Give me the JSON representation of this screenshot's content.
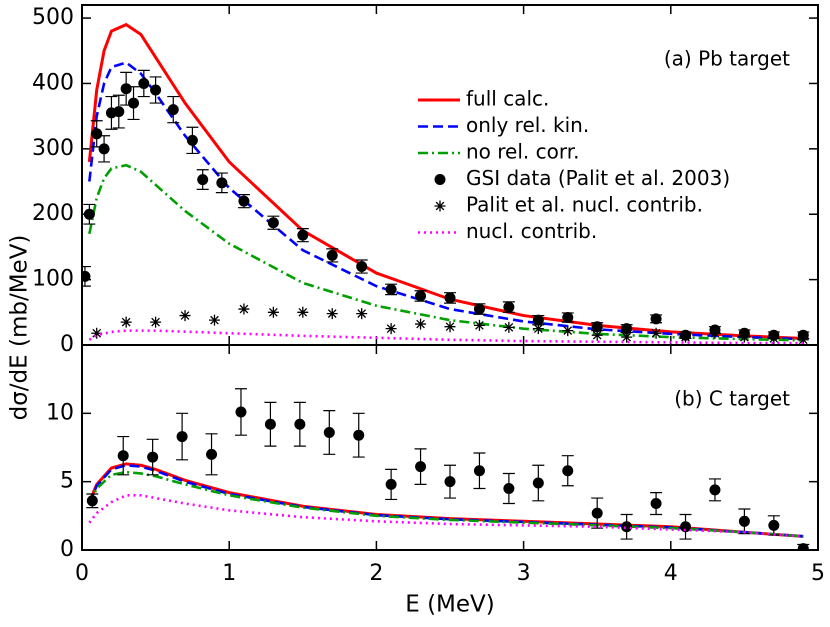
{
  "chart_data": [
    {
      "type": "line",
      "annotation": "(a) Pb target",
      "xlim": [
        0,
        5
      ],
      "xticks": [
        0,
        1,
        2,
        3,
        4,
        5
      ],
      "ylim": [
        0,
        520
      ],
      "yticks": [
        0,
        100,
        200,
        300,
        400,
        500
      ],
      "legend": "right",
      "series": [
        {
          "name": "full calc.",
          "color": "#ff0000",
          "style": "solid",
          "x": [
            0.05,
            0.1,
            0.15,
            0.2,
            0.3,
            0.4,
            0.5,
            0.7,
            1,
            1.5,
            2,
            2.5,
            3,
            3.5,
            4,
            4.5,
            4.9
          ],
          "values": [
            280,
            390,
            450,
            480,
            490,
            475,
            440,
            370,
            280,
            175,
            110,
            70,
            45,
            30,
            20,
            14,
            10
          ]
        },
        {
          "name": "only rel. kin.",
          "color": "#0000ff",
          "style": "dashed",
          "x": [
            0.05,
            0.1,
            0.15,
            0.2,
            0.3,
            0.4,
            0.5,
            0.7,
            1,
            1.5,
            2,
            2.5,
            3,
            3.5,
            4,
            4.5,
            4.9
          ],
          "values": [
            250,
            350,
            400,
            425,
            432,
            415,
            385,
            320,
            240,
            145,
            90,
            55,
            36,
            24,
            17,
            12,
            9
          ]
        },
        {
          "name": "no rel. corr.",
          "color": "#00a000",
          "style": "dashdot",
          "x": [
            0.05,
            0.1,
            0.15,
            0.2,
            0.3,
            0.4,
            0.5,
            0.7,
            1,
            1.5,
            2,
            2.5,
            3,
            3.5,
            4,
            4.5,
            4.9
          ],
          "values": [
            170,
            225,
            255,
            270,
            275,
            265,
            245,
            205,
            155,
            95,
            60,
            38,
            25,
            17,
            12,
            9,
            7
          ]
        },
        {
          "name": "GSI data (Palit et al. 2003)",
          "color": "#000000",
          "style": "markers",
          "marker": "circle",
          "x": [
            0.02,
            0.05,
            0.1,
            0.15,
            0.2,
            0.25,
            0.3,
            0.35,
            0.42,
            0.5,
            0.62,
            0.75,
            0.82,
            0.95,
            1.1,
            1.3,
            1.5,
            1.7,
            1.9,
            2.1,
            2.3,
            2.5,
            2.7,
            2.9,
            3.1,
            3.3,
            3.5,
            3.7,
            3.9,
            4.1,
            4.3,
            4.5,
            4.7,
            4.9
          ],
          "values": [
            105,
            200,
            323,
            300,
            355,
            357,
            392,
            370,
            400,
            390,
            360,
            313,
            253,
            248,
            220,
            187,
            168,
            137,
            120,
            85,
            75,
            72,
            55,
            58,
            38,
            42,
            28,
            25,
            40,
            15,
            23,
            18,
            15,
            15
          ],
          "errors": [
            15,
            15,
            20,
            20,
            25,
            25,
            25,
            25,
            20,
            20,
            20,
            20,
            15,
            15,
            10,
            10,
            10,
            10,
            10,
            8,
            8,
            8,
            8,
            8,
            7,
            7,
            6,
            6,
            6,
            5,
            5,
            5,
            5,
            5
          ]
        },
        {
          "name": "Palit et al. nucl. contrib.",
          "color": "#000000",
          "style": "markers",
          "marker": "star",
          "x": [
            0.1,
            0.3,
            0.5,
            0.7,
            0.9,
            1.1,
            1.3,
            1.5,
            1.7,
            1.9,
            2.1,
            2.3,
            2.5,
            2.7,
            2.9,
            3.1,
            3.3,
            3.5,
            3.7,
            3.9,
            4.1,
            4.3,
            4.5,
            4.7,
            4.9
          ],
          "values": [
            18,
            35,
            35,
            45,
            38,
            55,
            50,
            50,
            48,
            48,
            25,
            32,
            28,
            30,
            27,
            25,
            22,
            15,
            12,
            18,
            12,
            18,
            12,
            10,
            8
          ]
        },
        {
          "name": "nucl. contrib.",
          "color": "#ff00ff",
          "style": "dotted",
          "x": [
            0.05,
            0.1,
            0.2,
            0.3,
            0.5,
            1,
            1.5,
            2,
            2.5,
            3,
            3.5,
            4,
            4.5,
            4.9
          ],
          "values": [
            8,
            15,
            20,
            22,
            22,
            18,
            14,
            11,
            8,
            6,
            5,
            4,
            3,
            3
          ]
        }
      ]
    },
    {
      "type": "line",
      "annotation": "(b) C target",
      "xlabel": "E (MeV)",
      "ylabel": "dσ/dE (mb/MeV)",
      "xlim": [
        0,
        5
      ],
      "xticks": [
        0,
        1,
        2,
        3,
        4,
        5
      ],
      "ylim": [
        0,
        15
      ],
      "yticks": [
        0,
        5,
        10
      ],
      "series": [
        {
          "color": "#ff0000",
          "style": "solid",
          "x": [
            0.05,
            0.1,
            0.2,
            0.3,
            0.4,
            0.5,
            0.7,
            1,
            1.5,
            2,
            2.5,
            3,
            3.5,
            4,
            4.5,
            4.9
          ],
          "values": [
            3.5,
            4.8,
            6,
            6.3,
            6.2,
            5.9,
            5.1,
            4.2,
            3.2,
            2.6,
            2.3,
            2.1,
            1.9,
            1.7,
            1.3,
            1.0
          ]
        },
        {
          "color": "#0000ff",
          "style": "dashed",
          "x": [
            0.05,
            0.1,
            0.2,
            0.3,
            0.4,
            0.5,
            0.7,
            1,
            1.5,
            2,
            2.5,
            3,
            3.5,
            4,
            4.5,
            4.9
          ],
          "values": [
            3.4,
            4.7,
            5.9,
            6.2,
            6.1,
            5.8,
            5.0,
            4.1,
            3.15,
            2.55,
            2.25,
            2.05,
            1.85,
            1.65,
            1.3,
            1.0
          ]
        },
        {
          "color": "#00a000",
          "style": "dashdot",
          "x": [
            0.05,
            0.1,
            0.2,
            0.3,
            0.4,
            0.5,
            0.7,
            1,
            1.5,
            2,
            2.5,
            3,
            3.5,
            4,
            4.5,
            4.9
          ],
          "values": [
            3.3,
            4.5,
            5.5,
            5.7,
            5.6,
            5.4,
            4.8,
            4.0,
            3.1,
            2.5,
            2.2,
            2.0,
            1.8,
            1.6,
            1.3,
            1.0
          ]
        },
        {
          "color": "#000000",
          "style": "markers",
          "marker": "circle",
          "x": [
            0.07,
            0.28,
            0.48,
            0.68,
            0.88,
            1.08,
            1.28,
            1.48,
            1.68,
            1.88,
            2.1,
            2.3,
            2.5,
            2.7,
            2.9,
            3.1,
            3.3,
            3.5,
            3.7,
            3.9,
            4.1,
            4.3,
            4.5,
            4.7,
            4.9
          ],
          "values": [
            3.6,
            6.9,
            6.8,
            8.3,
            7.0,
            10.1,
            9.2,
            9.2,
            8.6,
            8.4,
            4.8,
            6.1,
            5.0,
            5.8,
            4.5,
            4.9,
            5.8,
            2.7,
            1.7,
            3.4,
            1.7,
            4.4,
            2.1,
            1.8,
            0.1
          ],
          "errors": [
            0.5,
            1.4,
            1.3,
            1.7,
            1.5,
            1.7,
            1.6,
            1.6,
            1.6,
            1.6,
            1.1,
            1.3,
            1.2,
            1.3,
            1.1,
            1.3,
            1.1,
            1.1,
            0.9,
            0.8,
            0.9,
            0.8,
            0.9,
            0.7,
            0.3
          ]
        },
        {
          "color": "#ff00ff",
          "style": "dotted",
          "x": [
            0.05,
            0.1,
            0.2,
            0.3,
            0.4,
            0.5,
            0.7,
            1,
            1.5,
            2,
            2.5,
            3,
            3.5,
            4,
            4.5,
            4.9
          ],
          "values": [
            2.0,
            2.7,
            3.5,
            4.0,
            4.0,
            3.8,
            3.4,
            2.9,
            2.4,
            2.1,
            1.9,
            1.8,
            1.7,
            1.5,
            1.3,
            1.0
          ]
        }
      ]
    }
  ]
}
